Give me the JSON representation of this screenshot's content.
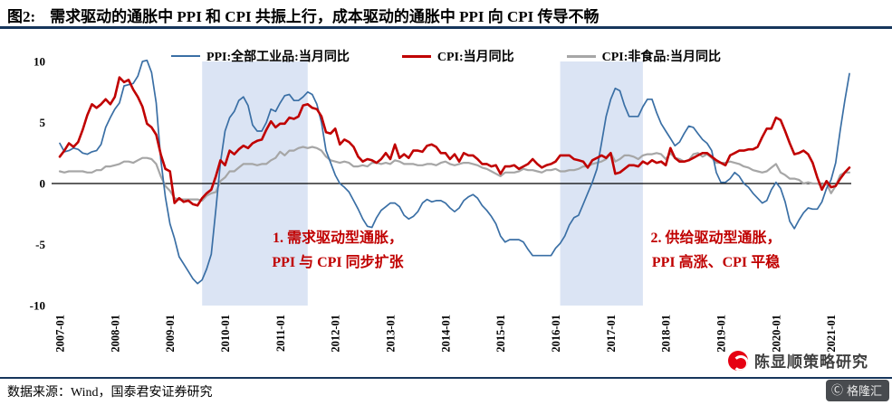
{
  "figure": {
    "label": "图2:",
    "title": "需求驱动的通胀中 PPI 和 CPI 共振上行，成本驱动的通胀中 PPI 向 CPI 传导不畅"
  },
  "annotations": [
    {
      "line1": "1. 需求驱动型通胀，",
      "line2": "PPI 与 CPI 同步扩张"
    },
    {
      "line1": "2. 供给驱动型通胀，",
      "line2": "PPI 高涨、CPI 平稳"
    }
  ],
  "source": "数据来源：Wind，国泰君安证券研究",
  "watermark": "陈显顺策略研究",
  "badge": "格隆汇",
  "colors": {
    "ppi_line": "#3a6fa5",
    "cpi_line": "#c00000",
    "cpi_nonfood_line": "#a6a6a6",
    "band": "#dbe4f4",
    "rule": "#16365c",
    "annotation": "#c00000"
  },
  "chart_data": {
    "type": "line",
    "title": "需求驱动的通胀中 PPI 和 CPI 共振上行，成本驱动的通胀中 PPI 向 CPI 传导不畅",
    "xlabel": "",
    "ylabel": "",
    "legend_position": "top",
    "grid": false,
    "x_start": "2007-01",
    "x_freq": "monthly",
    "x_ticks": [
      "2007-01",
      "2008-01",
      "2009-01",
      "2010-01",
      "2011-01",
      "2012-01",
      "2013-01",
      "2014-01",
      "2015-01",
      "2016-01",
      "2017-01",
      "2018-01",
      "2019-01",
      "2020-01",
      "2021-01"
    ],
    "ylim": [
      -10,
      10
    ],
    "y_ticks": [
      10,
      5,
      0,
      -5,
      -10
    ],
    "band_color": "#dbe4f4",
    "shaded_regions": [
      {
        "from": "2009-08",
        "to": "2011-07",
        "label": "1. 需求驱动型通胀，PPI 与 CPI 同步扩张"
      },
      {
        "from": "2016-02",
        "to": "2017-08",
        "label": "2. 供给驱动型通胀，PPI 高涨、CPI 平稳"
      }
    ],
    "series": [
      {
        "name": "PPI:全部工业品:当月同比",
        "color": "#3a6fa5",
        "values": [
          3.3,
          2.6,
          2.7,
          2.9,
          2.8,
          2.5,
          2.4,
          2.6,
          2.7,
          3.2,
          4.6,
          5.4,
          6.1,
          6.6,
          8.0,
          8.1,
          8.2,
          8.8,
          10.0,
          10.1,
          9.1,
          6.6,
          2.0,
          -1.1,
          -3.3,
          -4.5,
          -6.0,
          -6.6,
          -7.2,
          -7.8,
          -8.2,
          -7.9,
          -7.0,
          -5.8,
          -2.1,
          1.7,
          4.3,
          5.4,
          5.9,
          6.8,
          7.1,
          6.4,
          4.8,
          4.3,
          4.3,
          5.0,
          6.1,
          5.9,
          6.6,
          7.2,
          7.3,
          6.8,
          6.8,
          7.1,
          7.5,
          7.3,
          6.5,
          5.0,
          2.7,
          1.7,
          0.7,
          0.0,
          -0.3,
          -0.7,
          -1.4,
          -2.1,
          -2.9,
          -3.5,
          -3.6,
          -2.8,
          -2.2,
          -1.9,
          -1.6,
          -1.6,
          -1.9,
          -2.6,
          -2.9,
          -2.7,
          -2.3,
          -1.6,
          -1.3,
          -1.5,
          -1.4,
          -1.4,
          -1.6,
          -2.0,
          -2.3,
          -2.0,
          -1.4,
          -1.1,
          -0.9,
          -1.2,
          -1.8,
          -2.2,
          -2.7,
          -3.3,
          -4.3,
          -4.8,
          -4.6,
          -4.6,
          -4.6,
          -4.8,
          -5.4,
          -5.9,
          -5.9,
          -5.9,
          -5.9,
          -5.9,
          -5.3,
          -4.9,
          -4.3,
          -3.4,
          -2.8,
          -2.6,
          -1.7,
          -0.8,
          0.1,
          1.2,
          3.3,
          5.5,
          6.9,
          7.8,
          7.6,
          6.4,
          5.5,
          5.5,
          5.5,
          6.3,
          6.9,
          6.9,
          5.8,
          4.9,
          4.3,
          3.7,
          3.1,
          3.4,
          4.1,
          4.7,
          4.6,
          4.1,
          3.6,
          3.3,
          2.7,
          0.9,
          0.1,
          0.1,
          0.4,
          0.9,
          0.6,
          0.0,
          -0.3,
          -0.8,
          -1.2,
          -1.6,
          -1.4,
          -0.5,
          0.1,
          -0.4,
          -1.5,
          -3.1,
          -3.7,
          -3.0,
          -2.4,
          -2.0,
          -2.1,
          -2.1,
          -1.5,
          -0.4,
          0.3,
          1.7,
          4.4,
          6.8,
          9.0
        ]
      },
      {
        "name": "CPI:当月同比",
        "color": "#c00000",
        "values": [
          2.2,
          2.7,
          3.3,
          3.0,
          3.4,
          4.4,
          5.6,
          6.5,
          6.2,
          6.5,
          6.9,
          6.5,
          7.1,
          8.7,
          8.3,
          8.5,
          7.7,
          7.1,
          6.3,
          4.9,
          4.6,
          4.0,
          2.4,
          1.2,
          1.0,
          -1.6,
          -1.2,
          -1.5,
          -1.4,
          -1.7,
          -1.8,
          -1.2,
          -0.8,
          -0.5,
          0.6,
          1.9,
          1.5,
          2.7,
          2.4,
          2.8,
          3.1,
          2.9,
          3.3,
          3.5,
          3.6,
          4.4,
          5.1,
          4.6,
          4.9,
          4.9,
          5.4,
          5.3,
          5.5,
          6.4,
          6.5,
          6.2,
          6.1,
          5.5,
          4.2,
          4.1,
          4.5,
          3.2,
          3.6,
          3.4,
          3.0,
          2.2,
          1.8,
          2.0,
          1.9,
          1.7,
          2.0,
          2.5,
          2.0,
          3.2,
          2.1,
          2.4,
          2.1,
          2.7,
          2.7,
          2.6,
          3.1,
          3.2,
          3.0,
          2.5,
          2.5,
          2.0,
          2.4,
          1.8,
          2.5,
          2.3,
          2.3,
          2.0,
          1.6,
          1.6,
          1.4,
          1.5,
          0.8,
          1.4,
          1.4,
          1.5,
          1.2,
          1.4,
          1.6,
          2.0,
          1.6,
          1.3,
          1.5,
          1.6,
          1.8,
          2.3,
          2.3,
          2.3,
          2.0,
          1.9,
          1.8,
          1.3,
          1.9,
          2.1,
          2.3,
          2.1,
          2.5,
          0.8,
          0.9,
          1.2,
          1.5,
          1.5,
          1.4,
          1.8,
          1.6,
          1.9,
          1.7,
          1.8,
          1.5,
          2.9,
          2.1,
          1.8,
          1.8,
          1.9,
          2.1,
          2.3,
          2.5,
          2.5,
          2.2,
          1.9,
          1.7,
          1.5,
          2.3,
          2.5,
          2.7,
          2.7,
          2.8,
          2.8,
          3.0,
          3.8,
          4.5,
          4.5,
          5.4,
          5.2,
          4.3,
          3.3,
          2.4,
          2.5,
          2.7,
          2.4,
          1.7,
          0.5,
          -0.5,
          0.2,
          -0.3,
          -0.2,
          0.4,
          0.9,
          1.3
        ]
      },
      {
        "name": "CPI:非食品:当月同比",
        "color": "#a6a6a6",
        "values": [
          1.0,
          0.9,
          1.0,
          1.0,
          1.0,
          1.0,
          0.9,
          0.9,
          1.1,
          1.1,
          1.4,
          1.4,
          1.5,
          1.6,
          1.8,
          1.8,
          1.7,
          1.9,
          2.1,
          2.1,
          2.0,
          1.6,
          0.6,
          -0.2,
          -0.6,
          -1.2,
          -1.3,
          -1.3,
          -1.3,
          -1.3,
          -1.3,
          -1.4,
          -1.0,
          -0.8,
          -0.7,
          0.2,
          0.5,
          1.0,
          1.0,
          1.3,
          1.6,
          1.6,
          1.6,
          1.5,
          1.6,
          1.6,
          1.9,
          2.1,
          2.6,
          2.3,
          2.7,
          2.7,
          2.9,
          3.0,
          2.9,
          3.0,
          2.9,
          2.7,
          2.2,
          1.9,
          1.8,
          1.7,
          1.8,
          1.7,
          1.4,
          1.4,
          1.5,
          1.4,
          1.7,
          1.7,
          1.6,
          1.7,
          1.6,
          1.9,
          1.8,
          1.6,
          1.6,
          1.6,
          1.5,
          1.5,
          1.6,
          1.6,
          1.5,
          1.7,
          1.8,
          1.6,
          1.5,
          1.6,
          1.7,
          1.7,
          1.6,
          1.5,
          1.3,
          1.2,
          1.0,
          0.8,
          0.6,
          0.9,
          0.9,
          0.9,
          1.0,
          1.2,
          1.1,
          1.1,
          1.0,
          0.9,
          1.1,
          1.1,
          1.2,
          1.0,
          1.0,
          1.1,
          1.1,
          1.2,
          1.4,
          1.4,
          1.6,
          1.7,
          1.8,
          2.0,
          2.5,
          1.8,
          2.0,
          2.3,
          2.3,
          2.2,
          2.0,
          2.3,
          2.4,
          2.4,
          2.5,
          2.4,
          2.0,
          2.5,
          2.1,
          2.0,
          1.8,
          1.9,
          2.4,
          2.5,
          2.2,
          2.4,
          2.1,
          1.7,
          1.7,
          1.7,
          1.8,
          1.7,
          1.6,
          1.4,
          1.3,
          1.1,
          1.0,
          0.9,
          1.0,
          1.3,
          1.6,
          0.9,
          0.7,
          0.4,
          0.4,
          0.3,
          0.0,
          0.1,
          0.0,
          0.0,
          -0.1,
          0.0,
          -0.8,
          -0.2,
          0.7,
          0.9,
          0.9
        ]
      }
    ]
  }
}
